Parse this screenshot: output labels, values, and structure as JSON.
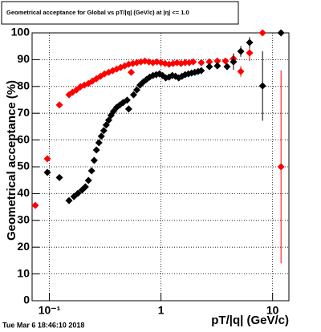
{
  "chart_data": {
    "type": "scatter",
    "title": "Geometrical acceptance for Global vs pT/|q| (GeV/c) at |η| <= 1.0",
    "x_label": "pT/|q| (GeV/c)",
    "y_label": "Geometrical acceptance (%)",
    "timestamp": "Tue Mar  6 18:46:10 2018",
    "x_log": true,
    "grid": true,
    "xlim": [
      0.07,
      14
    ],
    "ylim": [
      0,
      100
    ],
    "xticks": [
      {
        "value": 0.1,
        "label": "10⁻¹"
      },
      1,
      10
    ],
    "yticks": [
      0,
      10,
      20,
      30,
      40,
      50,
      60,
      70,
      80,
      90,
      100
    ],
    "series": [
      {
        "color": "#ff0000",
        "x": [
          0.0748,
          0.0959,
          0.123,
          0.15,
          0.161,
          0.175,
          0.19,
          0.206,
          0.224,
          0.243,
          0.264,
          0.287,
          0.312,
          0.34,
          0.369,
          0.401,
          0.435,
          0.473,
          0.514,
          0.541,
          0.559,
          0.607,
          0.66,
          0.717,
          0.779,
          0.847,
          0.92,
          1,
          1.087,
          1.181,
          1.283,
          1.394,
          1.515,
          1.647,
          1.789,
          1.945,
          2.296,
          2.712,
          3.2,
          3.78,
          4.46,
          5.19,
          6.22,
          8.13,
          11.9
        ],
        "values": [
          35.6,
          53,
          73.1,
          76.9,
          77.8,
          78.7,
          79.9,
          80.5,
          81.1,
          82,
          82.9,
          83.8,
          84.7,
          85.3,
          85.9,
          86.5,
          87.1,
          87.7,
          88.3,
          85.3,
          88.6,
          88.9,
          89.2,
          89.5,
          89.2,
          88.9,
          89.2,
          88.9,
          88.6,
          88.3,
          88.6,
          88.9,
          88.6,
          88.9,
          88.9,
          89.2,
          88.9,
          89.2,
          89.5,
          89.5,
          90.4,
          85.6,
          92.5,
          100,
          50
        ],
        "errors": [
          null,
          null,
          null,
          null,
          null,
          null,
          null,
          null,
          null,
          null,
          null,
          null,
          null,
          null,
          null,
          null,
          null,
          null,
          null,
          null,
          null,
          null,
          null,
          null,
          null,
          null,
          null,
          null,
          null,
          null,
          null,
          null,
          null,
          null,
          null,
          null,
          null,
          null,
          null,
          null,
          2,
          2,
          3,
          null,
          36
        ]
      },
      {
        "color": "#000000",
        "x": [
          0.0959,
          0.123,
          0.15,
          0.166,
          0.18,
          0.196,
          0.21,
          0.224,
          0.239,
          0.252,
          0.264,
          0.278,
          0.292,
          0.307,
          0.323,
          0.34,
          0.357,
          0.375,
          0.401,
          0.428,
          0.458,
          0.497,
          0.514,
          0.568,
          0.607,
          0.649,
          0.694,
          0.741,
          0.792,
          0.847,
          0.905,
          0.967,
          1.034,
          1.105,
          1.181,
          1.262,
          1.349,
          1.442,
          1.54,
          1.647,
          1.759,
          1.88,
          2.01,
          2.148,
          2.296,
          2.712,
          3.2,
          3.91,
          4.46,
          5.19,
          6.22,
          8.13,
          11.9
        ],
        "values": [
          47.9,
          46,
          37.4,
          38.9,
          40.1,
          41.3,
          42.5,
          44.9,
          48.5,
          52.4,
          56.3,
          59,
          61.4,
          63.5,
          65.6,
          67.4,
          69.2,
          70.7,
          72.2,
          73.1,
          74,
          74.9,
          71.6,
          76.9,
          78.7,
          80.5,
          81.7,
          82.6,
          83.5,
          84.1,
          84.4,
          84.7,
          84.1,
          83.2,
          83.5,
          84.1,
          83.8,
          83.2,
          83.8,
          84.4,
          84.7,
          85,
          85.3,
          85.6,
          85.9,
          87.4,
          87.7,
          87.4,
          89.2,
          93.1,
          96.4,
          80.2,
          100
        ],
        "errors": [
          null,
          null,
          null,
          null,
          null,
          null,
          null,
          null,
          null,
          null,
          null,
          null,
          null,
          null,
          null,
          null,
          null,
          null,
          null,
          null,
          null,
          null,
          null,
          null,
          null,
          null,
          null,
          null,
          null,
          null,
          null,
          null,
          null,
          null,
          null,
          null,
          null,
          null,
          null,
          null,
          null,
          null,
          null,
          null,
          null,
          null,
          null,
          null,
          3,
          2,
          2,
          13,
          null
        ]
      }
    ]
  }
}
